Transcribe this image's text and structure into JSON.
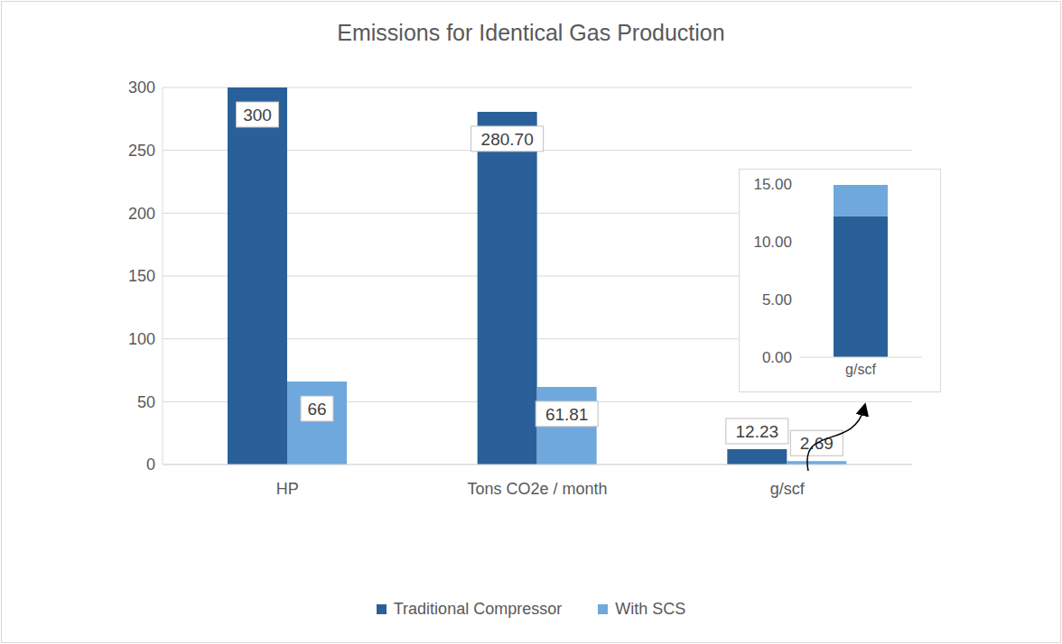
{
  "chart_data": [
    {
      "type": "bar",
      "title": "Emissions for Identical Gas Production",
      "categories": [
        "HP",
        "Tons CO2e / month",
        "g/scf"
      ],
      "series": [
        {
          "name": "Traditional Compressor",
          "color": "#2a6099",
          "values": [
            300,
            280.7,
            12.23
          ],
          "value_labels": [
            "300",
            "280.70",
            "12.23"
          ]
        },
        {
          "name": "With SCS",
          "color": "#6fa8dc",
          "values": [
            66,
            61.81,
            2.69
          ]
        }
      ],
      "ylim": [
        0,
        300
      ],
      "yticks": [
        0,
        50,
        100,
        150,
        200,
        250,
        300
      ],
      "grid": true,
      "data_labels": true,
      "legend": "bottom"
    },
    {
      "type": "bar",
      "stacked": true,
      "categories": [
        "g/scf"
      ],
      "series": [
        {
          "name": "Traditional Compressor",
          "color": "#2a6099",
          "values": [
            12.23
          ]
        },
        {
          "name": "With SCS",
          "color": "#6fa8dc",
          "values": [
            2.69
          ]
        }
      ],
      "ylim": [
        0,
        15
      ],
      "yticks": [
        {
          "value": 0,
          "label": "0.00"
        },
        {
          "value": 5,
          "label": "5.00"
        },
        {
          "value": 10,
          "label": "10.00"
        },
        {
          "value": 15,
          "label": "15.00"
        }
      ],
      "grid": false
    }
  ]
}
